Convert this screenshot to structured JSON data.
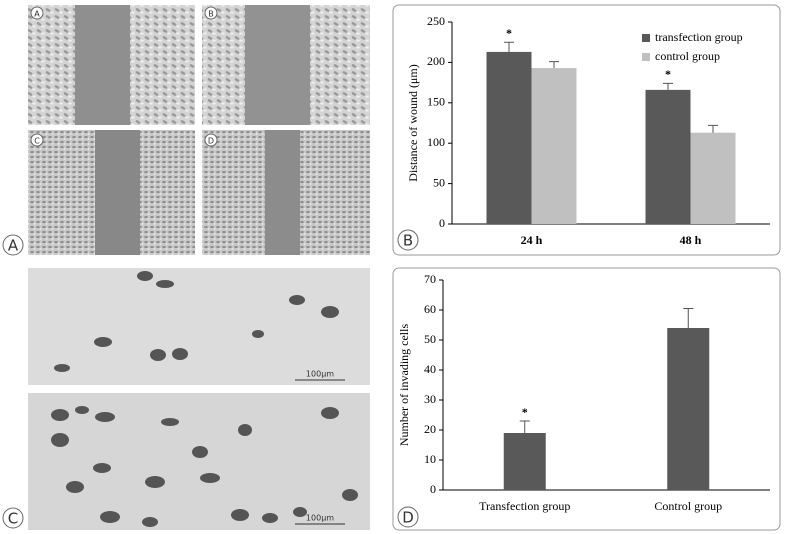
{
  "figure": {
    "panel_labels": [
      "A",
      "B",
      "C",
      "D"
    ],
    "image_labels": [
      "A",
      "B",
      "C",
      "D"
    ],
    "scale_bars": [
      "100μm",
      "100μm"
    ]
  },
  "chart_data": [
    {
      "type": "bar",
      "ylabel": "Distance of wound (μm)",
      "categories": [
        "24 h",
        "48 h"
      ],
      "series": [
        {
          "name": "transfection group",
          "color": "#595959",
          "values": [
            213,
            166
          ],
          "errors": [
            12,
            8
          ],
          "significance": [
            "*",
            "*"
          ]
        },
        {
          "name": "control group",
          "color": "#c0c0c0",
          "values": [
            193,
            113
          ],
          "errors": [
            8,
            9
          ]
        }
      ],
      "ylim": [
        0,
        250
      ],
      "yticks": [
        0,
        50,
        100,
        150,
        200,
        250
      ],
      "legend": "upper right"
    },
    {
      "type": "bar",
      "ylabel": "Number of invading cells",
      "categories": [
        "Transfection group",
        "Control group"
      ],
      "values": [
        19,
        54
      ],
      "errors": [
        4,
        6.5
      ],
      "significance": [
        "*",
        null
      ],
      "color": "#595959",
      "ylim": [
        0,
        70
      ],
      "yticks": [
        0,
        10,
        20,
        30,
        40,
        50,
        60,
        70
      ]
    }
  ]
}
